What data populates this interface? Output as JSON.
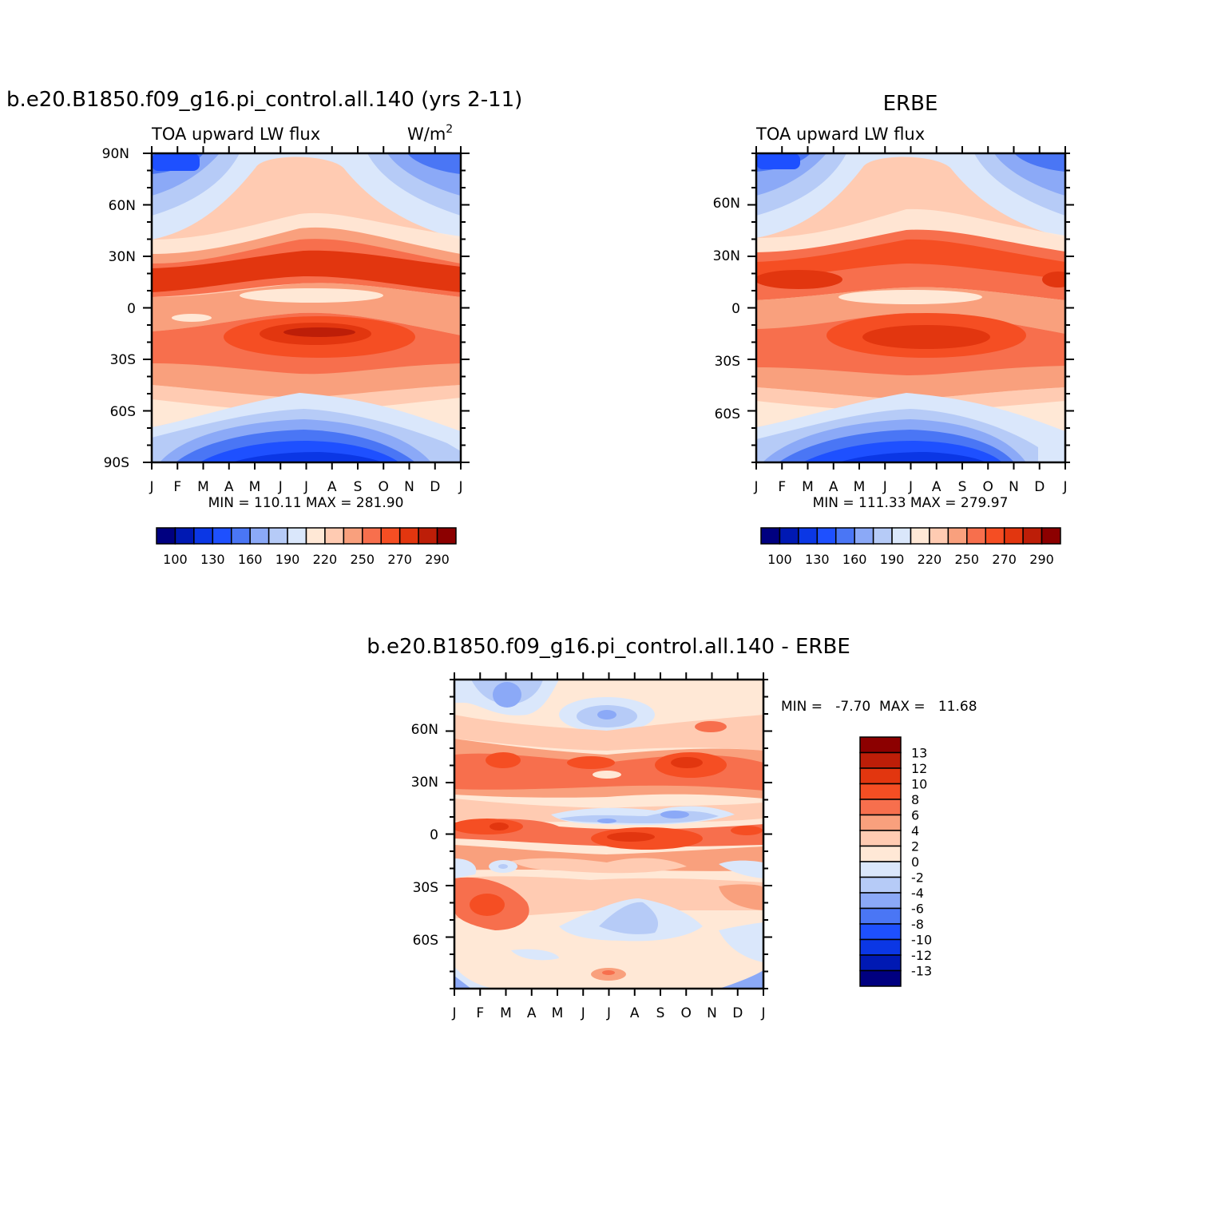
{
  "colors": {
    "blues": [
      "#000080",
      "#0019b3",
      "#0b37e5",
      "#1e50ff",
      "#4a76f5",
      "#8ba9f7",
      "#b6cbf7",
      "#dae7fb"
    ],
    "reds": [
      "#ffe8d6",
      "#ffcbb2",
      "#f9a07d",
      "#f76f4d",
      "#f54e23",
      "#e2360f",
      "#bd1e08",
      "#8c0000"
    ]
  },
  "chart_data": [
    {
      "id": "model",
      "type": "heatmap",
      "title": "b.e20.B1850.f09_g16.pi_control.all.140 (yrs 2-11)",
      "left_label": "TOA upward LW flux",
      "right_label_base": "W/m",
      "right_label_sup": "2",
      "x_tick_labels": [
        "J",
        "F",
        "M",
        "A",
        "M",
        "J",
        "J",
        "A",
        "S",
        "O",
        "N",
        "D",
        "J"
      ],
      "y_tick_labels": [
        "90N",
        "60N",
        "30N",
        "0",
        "30S",
        "60S",
        "90S"
      ],
      "ylim": [
        -90,
        90
      ],
      "min_max_text": "MIN = 110.11  MAX = 281.90",
      "colorbar_ticks": [
        "100",
        "130",
        "160",
        "190",
        "220",
        "250",
        "270",
        "290"
      ],
      "min": 110.11,
      "max": 281.9
    },
    {
      "id": "erbe",
      "type": "heatmap",
      "title": "ERBE",
      "left_label": "TOA upward LW flux",
      "x_tick_labels": [
        "J",
        "F",
        "M",
        "A",
        "M",
        "J",
        "J",
        "A",
        "S",
        "O",
        "N",
        "D",
        "J"
      ],
      "y_tick_labels": [
        "60N",
        "30N",
        "0",
        "30S",
        "60S"
      ],
      "ylim": [
        -90,
        90
      ],
      "min_max_text": "MIN = 111.33  MAX = 279.97",
      "colorbar_ticks": [
        "100",
        "130",
        "160",
        "190",
        "220",
        "250",
        "270",
        "290"
      ],
      "min": 111.33,
      "max": 279.97
    },
    {
      "id": "diff",
      "type": "heatmap",
      "title": "b.e20.B1850.f09_g16.pi_control.all.140 - ERBE",
      "x_tick_labels": [
        "J",
        "F",
        "M",
        "A",
        "M",
        "J",
        "J",
        "A",
        "S",
        "O",
        "N",
        "D",
        "J"
      ],
      "y_tick_labels": [
        "60N",
        "30N",
        "0",
        "30S",
        "60S"
      ],
      "ylim": [
        -90,
        90
      ],
      "min_max_text": "MIN =   -7.70  MAX =   11.68",
      "colorbar_levels": [
        "13",
        "12",
        "10",
        "8",
        "6",
        "4",
        "2",
        "0",
        "-2",
        "-4",
        "-6",
        "-8",
        "-10",
        "-12",
        "-13"
      ],
      "min": -7.7,
      "max": 11.68
    }
  ]
}
